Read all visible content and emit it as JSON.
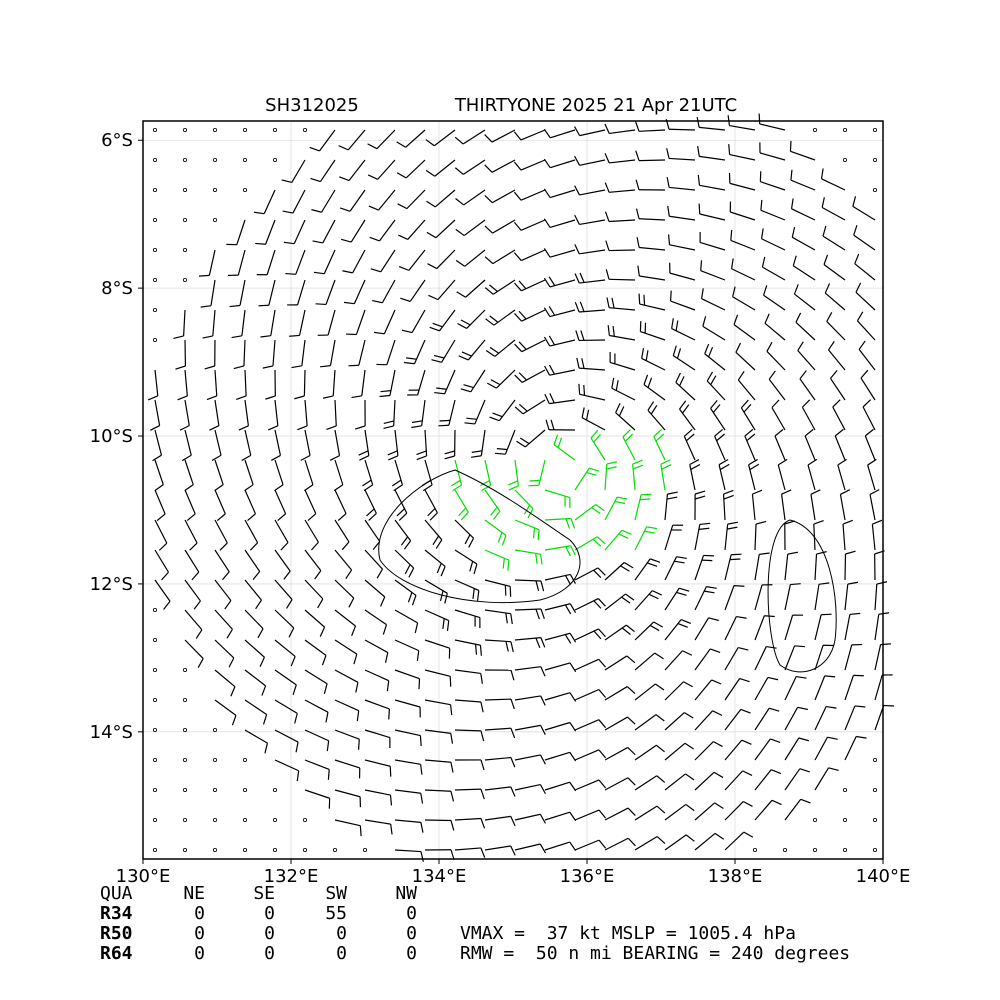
{
  "map": {
    "title_left": "SH312025",
    "title_right": "THIRTYONE 2025 21 Apr 21UTC",
    "xlim": [
      130,
      140
    ],
    "ylim": [
      -15.72,
      -5.74
    ],
    "xticks": [
      {
        "value": 130,
        "label": "130°E"
      },
      {
        "value": 132,
        "label": "132°E"
      },
      {
        "value": 134,
        "label": "134°E"
      },
      {
        "value": 136,
        "label": "136°E"
      },
      {
        "value": 138,
        "label": "138°E"
      },
      {
        "value": 140,
        "label": "140°E"
      }
    ],
    "yticks": [
      {
        "value": -6,
        "label": "6°S"
      },
      {
        "value": -8,
        "label": "8°S"
      },
      {
        "value": -10,
        "label": "10°S"
      },
      {
        "value": -12,
        "label": "12°S"
      },
      {
        "value": -14,
        "label": "14°S"
      }
    ]
  },
  "table": {
    "header": [
      "QUA",
      "NE",
      "SE",
      "SW",
      "NW"
    ],
    "rows": [
      [
        "R34",
        0,
        0,
        55,
        0
      ],
      [
        "R50",
        0,
        0,
        0,
        0
      ],
      [
        "R64",
        0,
        0,
        0,
        0
      ]
    ]
  },
  "stats": [
    "VMAX =  37 kt MSLP = 1005.4 hPa",
    "RMW =  50 n mi BEARING = 240 degrees"
  ]
}
